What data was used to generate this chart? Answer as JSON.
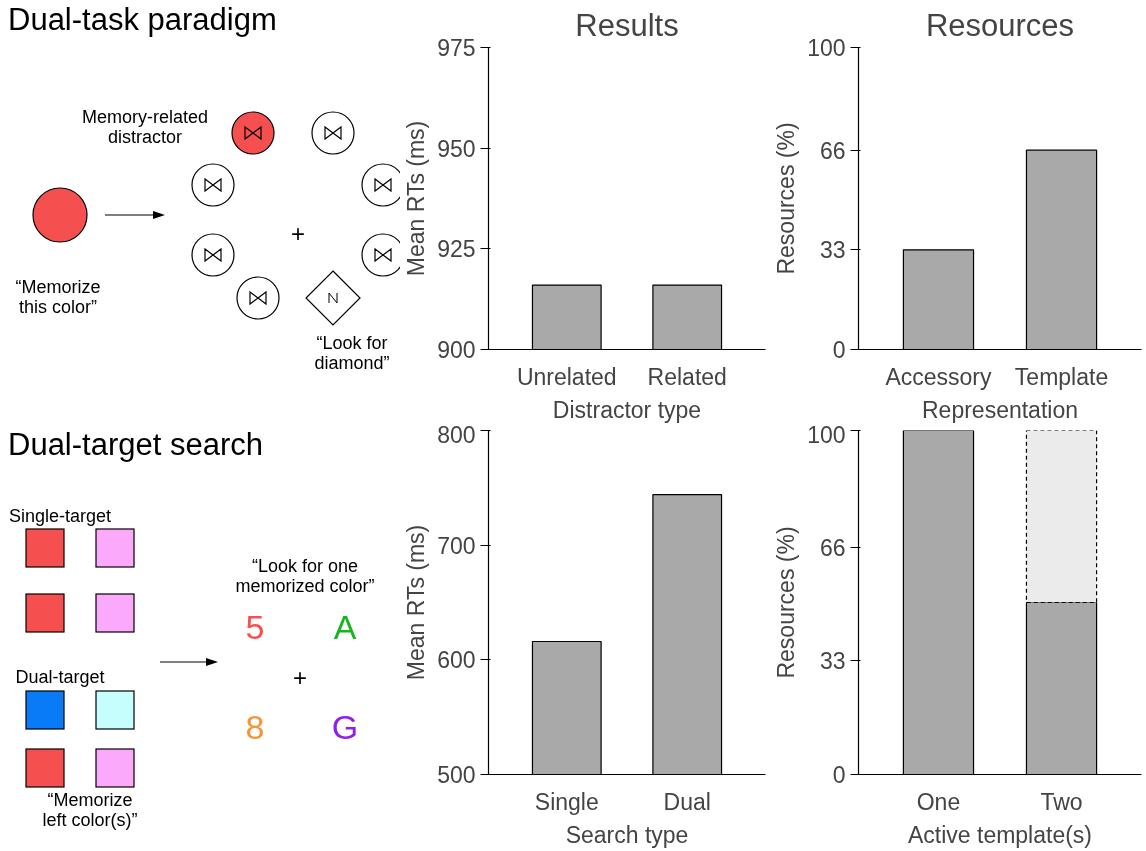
{
  "chart_data": [
    {
      "type": "other",
      "title": "Dual-task paradigm",
      "annotations": [
        "Memory-related\ndistractor",
        "“Memorize\nthis color”",
        "+",
        "“Look for\ndiamond”"
      ]
    },
    {
      "type": "bar",
      "title": "Results",
      "xlabel": "Distractor type",
      "ylabel": "Mean RTs (ms)",
      "categories": [
        "Unrelated",
        "Related"
      ],
      "values": [
        916,
        916
      ],
      "color": "#a9a9a9",
      "ylim": [
        900,
        975
      ],
      "yticks": [
        900,
        925,
        950,
        975
      ],
      "grid": false
    },
    {
      "type": "bar",
      "title": "Resources",
      "xlabel": "Representation",
      "ylabel": "Resources (%)",
      "categories": [
        "Accessory",
        "Template"
      ],
      "values": [
        33,
        66
      ],
      "color": "#a9a9a9",
      "ylim": [
        0,
        100
      ],
      "yticks": [
        0,
        33,
        66,
        100
      ],
      "grid": false
    },
    {
      "type": "other",
      "title": "Dual-target search",
      "annotations": [
        "Single-target",
        "Dual-target",
        "“Memorize\nleft color(s)”",
        "“Look for one\nmemorized color”",
        "5",
        "A",
        "+",
        "8",
        "G"
      ]
    },
    {
      "type": "bar",
      "xlabel": "Search type",
      "ylabel": "Mean RTs (ms)",
      "categories": [
        "Single",
        "Dual"
      ],
      "values": [
        616,
        744
      ],
      "color": "#a9a9a9",
      "ylim": [
        500,
        800
      ],
      "yticks": [
        500,
        600,
        700,
        800
      ],
      "grid": false
    },
    {
      "type": "bar",
      "stacked": true,
      "xlabel": "Active template(s)",
      "ylabel": "Resources (%)",
      "categories": [
        "One",
        "Two"
      ],
      "ylim": [
        0,
        100
      ],
      "yticks": [
        0,
        33,
        66,
        100
      ],
      "grid": false,
      "series": [
        {
          "color": "#a9a9a9",
          "values": [
            100,
            50
          ]
        },
        {
          "color": "#ebebeb",
          "values": [
            null,
            50
          ],
          "line_style": "dashed"
        }
      ]
    }
  ]
}
